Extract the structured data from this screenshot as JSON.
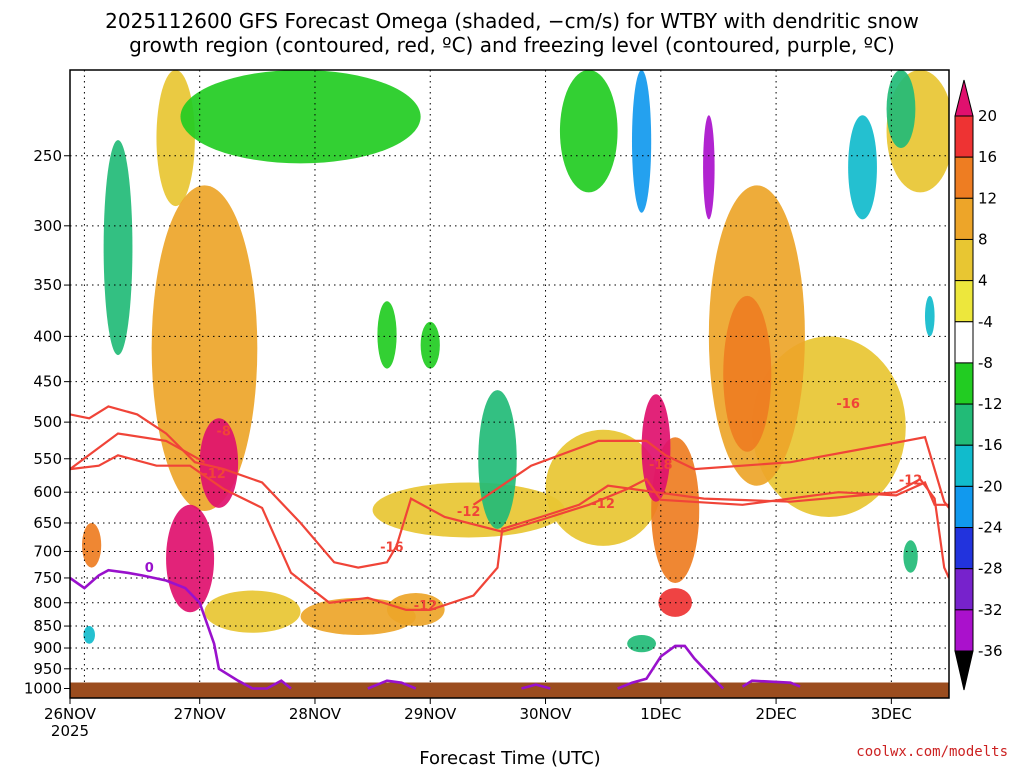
{
  "chart_data": {
    "type": "heatmap",
    "title_line1": "2025112600 GFS Forecast Omega (shaded, −cm/s) for WTBY with dendritic snow",
    "title_line2": "growth region (contoured, red, ºC) and freezing level (contoured, purple, ºC)",
    "xlabel": "Forecast Time (UTC)",
    "ylabel": "",
    "x_ticks": [
      "26NOV",
      "27NOV",
      "28NOV",
      "29NOV",
      "30NOV",
      "1DEC",
      "2DEC",
      "3DEC"
    ],
    "x_year_label": "2025",
    "xlim_hours": [
      0,
      183
    ],
    "y_ticks": [
      250,
      300,
      350,
      400,
      450,
      500,
      550,
      600,
      650,
      700,
      750,
      800,
      850,
      900,
      950,
      1000
    ],
    "ylim_hpa": [
      1025,
      200
    ],
    "colorbar_labels": [
      20,
      16,
      12,
      8,
      4,
      -4,
      -8,
      -12,
      -16,
      -20,
      -24,
      -28,
      -32,
      -36
    ],
    "colorbar_colors": [
      "#e0106e",
      "#ee3333",
      "#ee7d22",
      "#eda529",
      "#e8c632",
      "#ede73c",
      "#ffffff",
      "#22cc22",
      "#22bb77",
      "#11bbcc",
      "#1199ee",
      "#2233dd",
      "#7722cc",
      "#aa11cc",
      "#aaaaaa",
      "#000000"
    ],
    "omega_blobs": [
      {
        "t": 4.5,
        "p": 690,
        "dt": 2.0,
        "dp": 80,
        "value": 12
      },
      {
        "t": 25,
        "p": 720,
        "dt": 5,
        "dp": 200,
        "value": 20
      },
      {
        "t": 31,
        "p": 560,
        "dt": 4,
        "dp": 130,
        "value": 22
      },
      {
        "t": 28,
        "p": 450,
        "dt": 11,
        "dp": 360,
        "value": 9
      },
      {
        "t": 22,
        "p": 230,
        "dt": 4,
        "dp": 110,
        "value": 6
      },
      {
        "t": 38,
        "p": 820,
        "dt": 10,
        "dp": 90,
        "value": 6
      },
      {
        "t": 60,
        "p": 830,
        "dt": 12,
        "dp": 80,
        "value": 8
      },
      {
        "t": 72,
        "p": 815,
        "dt": 6,
        "dp": 70,
        "value": 10
      },
      {
        "t": 83,
        "p": 630,
        "dt": 20,
        "dp": 90,
        "value": 5
      },
      {
        "t": 111,
        "p": 600,
        "dt": 12,
        "dp": 180,
        "value": 7
      },
      {
        "t": 122,
        "p": 540,
        "dt": 3,
        "dp": 150,
        "value": 20
      },
      {
        "t": 126,
        "p": 640,
        "dt": 5,
        "dp": 240,
        "value": 14
      },
      {
        "t": 126,
        "p": 800,
        "dt": 3.5,
        "dp": 60,
        "value": 16
      },
      {
        "t": 141,
        "p": 450,
        "dt": 5,
        "dp": 180,
        "value": 15
      },
      {
        "t": 143,
        "p": 430,
        "dt": 10,
        "dp": 320,
        "value": 9
      },
      {
        "t": 158,
        "p": 520,
        "dt": 16,
        "dp": 240,
        "value": 4
      },
      {
        "t": 177,
        "p": 230,
        "dt": 7,
        "dp": 90,
        "value": 5
      },
      {
        "t": 48,
        "p": 220,
        "dt": 25,
        "dp": 70,
        "value": -6
      },
      {
        "t": 89,
        "p": 560,
        "dt": 4,
        "dp": 200,
        "value": -10
      },
      {
        "t": 10,
        "p": 330,
        "dt": 3,
        "dp": 180,
        "value": -11
      },
      {
        "t": 108,
        "p": 230,
        "dt": 6,
        "dp": 90,
        "value": -7
      },
      {
        "t": 119,
        "p": 230,
        "dt": 2,
        "dp": 120,
        "value": -18
      },
      {
        "t": 133,
        "p": 260,
        "dt": 1.2,
        "dp": 70,
        "value": -30
      },
      {
        "t": 165,
        "p": 260,
        "dt": 3,
        "dp": 70,
        "value": -12
      },
      {
        "t": 173,
        "p": 220,
        "dt": 3,
        "dp": 50,
        "value": -10
      },
      {
        "t": 75,
        "p": 410,
        "dt": 2,
        "dp": 50,
        "value": -7
      },
      {
        "t": 66,
        "p": 400,
        "dt": 2,
        "dp": 70,
        "value": -7
      },
      {
        "t": 119,
        "p": 890,
        "dt": 3,
        "dp": 40,
        "value": -8
      },
      {
        "t": 175,
        "p": 710,
        "dt": 1.5,
        "dp": 60,
        "value": -10
      },
      {
        "t": 179,
        "p": 380,
        "dt": 1,
        "dp": 40,
        "value": -13
      },
      {
        "t": 4,
        "p": 870,
        "dt": 1.2,
        "dp": 40,
        "value": -13
      }
    ],
    "dgz_minus12_contours": [
      [
        [
          0,
          490
        ],
        [
          4,
          495
        ],
        [
          8,
          480
        ],
        [
          14,
          490
        ],
        [
          20,
          515
        ],
        [
          26,
          555
        ],
        [
          32,
          565
        ],
        [
          40,
          585
        ],
        [
          48,
          650
        ],
        [
          55,
          720
        ],
        [
          60,
          730
        ],
        [
          66,
          720
        ],
        [
          68,
          690
        ],
        [
          71,
          610
        ],
        [
          78,
          640
        ],
        [
          90,
          665
        ],
        [
          98,
          645
        ],
        [
          108,
          620
        ],
        [
          116,
          595
        ],
        [
          120,
          580
        ],
        [
          123,
          612
        ],
        [
          140,
          620
        ],
        [
          160,
          600
        ],
        [
          172,
          605
        ],
        [
          178,
          585
        ],
        [
          180,
          620
        ],
        [
          183,
          620
        ]
      ],
      [
        [
          0,
          565
        ],
        [
          6,
          560
        ],
        [
          10,
          545
        ],
        [
          18,
          560
        ],
        [
          25,
          560
        ],
        [
          32,
          595
        ],
        [
          40,
          625
        ],
        [
          46,
          740
        ],
        [
          54,
          800
        ],
        [
          62,
          790
        ],
        [
          70,
          815
        ],
        [
          75,
          815
        ],
        [
          84,
          785
        ],
        [
          89,
          730
        ],
        [
          90,
          660
        ],
        [
          98,
          640
        ],
        [
          106,
          620
        ],
        [
          112,
          590
        ],
        [
          122,
          600
        ],
        [
          132,
          610
        ],
        [
          150,
          615
        ],
        [
          172,
          600
        ],
        [
          177,
          580
        ],
        [
          180,
          610
        ],
        [
          182,
          730
        ],
        [
          183,
          750
        ]
      ],
      [
        [
          0,
          565
        ],
        [
          10,
          515
        ],
        [
          20,
          525
        ],
        [
          28,
          555
        ]
      ],
      [
        [
          84,
          620
        ],
        [
          96,
          560
        ],
        [
          110,
          525
        ],
        [
          120,
          525
        ],
        [
          124,
          545
        ],
        [
          130,
          565
        ],
        [
          150,
          555
        ],
        [
          170,
          530
        ],
        [
          178,
          520
        ],
        [
          182,
          615
        ],
        [
          183,
          625
        ]
      ]
    ],
    "dgz_labels": [
      {
        "t": 32,
        "p": 518,
        "text": "-8"
      },
      {
        "t": 30,
        "p": 578,
        "text": "-12"
      },
      {
        "t": 74,
        "p": 815,
        "text": "-12"
      },
      {
        "t": 67,
        "p": 700,
        "text": "-16"
      },
      {
        "t": 83,
        "p": 638,
        "text": "-12"
      },
      {
        "t": 111,
        "p": 625,
        "text": "-12"
      },
      {
        "t": 123,
        "p": 565,
        "text": "-18"
      },
      {
        "t": 162,
        "p": 482,
        "text": "-16"
      },
      {
        "t": 175,
        "p": 588,
        "text": "-12"
      }
    ],
    "freezing_level_0C": [
      [
        [
          0,
          750
        ],
        [
          3,
          770
        ],
        [
          6,
          745
        ],
        [
          8,
          735
        ],
        [
          12,
          740
        ],
        [
          15,
          745
        ],
        [
          20,
          755
        ],
        [
          24,
          770
        ],
        [
          27,
          800
        ],
        [
          30,
          890
        ],
        [
          31,
          950
        ],
        [
          35,
          980
        ],
        [
          38,
          1000
        ],
        [
          41,
          1000
        ],
        [
          44,
          980
        ],
        [
          46,
          1000
        ]
      ],
      [
        [
          62,
          1000
        ],
        [
          66,
          980
        ],
        [
          69,
          985
        ],
        [
          72,
          1000
        ]
      ],
      [
        [
          94,
          1000
        ],
        [
          97,
          990
        ],
        [
          100,
          1000
        ]
      ],
      [
        [
          114,
          1000
        ],
        [
          117,
          985
        ],
        [
          120,
          975
        ],
        [
          123,
          920
        ],
        [
          126,
          895
        ],
        [
          128,
          895
        ],
        [
          130,
          925
        ],
        [
          134,
          975
        ],
        [
          136,
          1000
        ]
      ],
      [
        [
          140,
          995
        ],
        [
          142,
          980
        ],
        [
          150,
          985
        ],
        [
          152,
          995
        ]
      ]
    ],
    "freezing_level_label": {
      "t": 14,
      "p": 735,
      "text": "0"
    },
    "surface_pressure_hpa": 1000,
    "terrain_color": "#9b4d1f",
    "credit": "coolwx.com/modelts"
  }
}
